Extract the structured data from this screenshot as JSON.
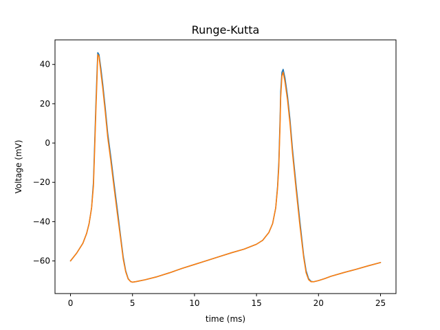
{
  "chart_data": {
    "type": "line",
    "title": "Runge-Kutta",
    "xlabel": "time (ms)",
    "ylabel": "Voltage (mV)",
    "xlim": [
      -1.25,
      26.25
    ],
    "ylim": [
      -76.6,
      52.5
    ],
    "xticks": [
      0,
      5,
      10,
      15,
      20,
      25
    ],
    "yticks": [
      -60,
      -40,
      -20,
      0,
      20,
      40
    ],
    "grid": false,
    "series": [
      {
        "color": "#1f77b4",
        "x": [
          0,
          0.5,
          1,
          1.3,
          1.5,
          1.7,
          1.85,
          1.95,
          2.05,
          2.15,
          2.2,
          2.3,
          2.45,
          2.6,
          2.8,
          3.0,
          3.25,
          3.5,
          3.8,
          4.05,
          4.25,
          4.45,
          4.65,
          4.85,
          5.0,
          5.3,
          6,
          7,
          8,
          9,
          10,
          11,
          12,
          13,
          14,
          15,
          15.5,
          16,
          16.3,
          16.55,
          16.7,
          16.8,
          16.9,
          16.95,
          17.05,
          17.15,
          17.3,
          17.5,
          17.7,
          17.9,
          18.2,
          18.5,
          18.8,
          19.0,
          19.2,
          19.4,
          19.6,
          19.8,
          20.0,
          20.5,
          21,
          22,
          23,
          24,
          25
        ],
        "y": [
          -60,
          -56,
          -51,
          -46,
          -41,
          -33,
          -20,
          0,
          20,
          38,
          46,
          45,
          38,
          30,
          18,
          5,
          -7,
          -20,
          -35,
          -48,
          -58,
          -65,
          -69,
          -70.5,
          -70.8,
          -70.5,
          -69.6,
          -68,
          -66,
          -63.8,
          -61.8,
          -59.8,
          -57.8,
          -55.8,
          -54,
          -51.5,
          -49.5,
          -45.5,
          -41,
          -33,
          -22,
          -10,
          12,
          26,
          36,
          37.5,
          33,
          24,
          12,
          -3,
          -22,
          -40,
          -57,
          -65,
          -69,
          -70.4,
          -70.6,
          -70.3,
          -70,
          -69,
          -67.8,
          -66,
          -64.3,
          -62.5,
          -60.8
        ]
      },
      {
        "color": "#ff7f0e",
        "x": [
          0,
          0.5,
          1,
          1.3,
          1.5,
          1.7,
          1.85,
          1.95,
          2.05,
          2.15,
          2.2,
          2.3,
          2.45,
          2.6,
          2.8,
          3.0,
          3.25,
          3.5,
          3.8,
          4.05,
          4.25,
          4.45,
          4.65,
          4.85,
          5.0,
          5.3,
          6,
          7,
          8,
          9,
          10,
          11,
          12,
          13,
          14,
          15,
          15.5,
          16,
          16.3,
          16.55,
          16.7,
          16.8,
          16.9,
          16.95,
          17.05,
          17.15,
          17.3,
          17.5,
          17.7,
          17.9,
          18.2,
          18.5,
          18.8,
          19.0,
          19.2,
          19.4,
          19.6,
          19.8,
          20.0,
          20.5,
          21,
          22,
          23,
          24,
          25
        ],
        "y": [
          -60,
          -56,
          -51,
          -46,
          -41,
          -33,
          -22,
          -3,
          17,
          35,
          45,
          44,
          36,
          28,
          16,
          3,
          -9,
          -22,
          -37,
          -49,
          -59,
          -65.5,
          -69.2,
          -70.5,
          -70.8,
          -70.5,
          -69.6,
          -68,
          -66,
          -63.8,
          -61.8,
          -59.8,
          -57.8,
          -55.8,
          -54,
          -51.5,
          -49.5,
          -45.5,
          -41,
          -33,
          -23,
          -12,
          9,
          23,
          34,
          36,
          31,
          22,
          10,
          -5,
          -24,
          -42,
          -58,
          -66,
          -69.5,
          -70.6,
          -70.6,
          -70.3,
          -70,
          -69,
          -67.8,
          -66,
          -64.3,
          -62.5,
          -60.8
        ]
      }
    ]
  }
}
